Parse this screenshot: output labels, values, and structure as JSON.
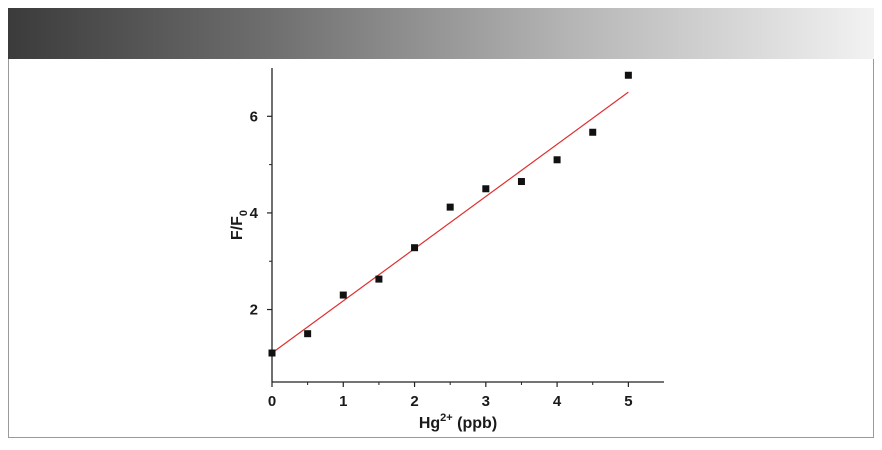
{
  "chart_data": {
    "type": "scatter",
    "xlabel": {
      "base": "Hg",
      "sup": "2+",
      "rest": " (ppb)"
    },
    "ylabel": {
      "base": "F/F",
      "sub": "0"
    },
    "xlim": [
      0,
      5.5
    ],
    "ylim": [
      0.5,
      7
    ],
    "xticks": [
      0,
      1,
      2,
      3,
      4,
      5
    ],
    "yticks": [
      2,
      4,
      6
    ],
    "yminor": [
      3,
      5
    ],
    "points": [
      {
        "x": 0.0,
        "y": 1.1
      },
      {
        "x": 0.5,
        "y": 1.5
      },
      {
        "x": 1.0,
        "y": 2.3
      },
      {
        "x": 1.5,
        "y": 2.63
      },
      {
        "x": 2.0,
        "y": 3.28
      },
      {
        "x": 2.5,
        "y": 4.12
      },
      {
        "x": 3.0,
        "y": 4.5
      },
      {
        "x": 3.5,
        "y": 4.65
      },
      {
        "x": 4.0,
        "y": 5.1
      },
      {
        "x": 4.5,
        "y": 5.67
      },
      {
        "x": 5.0,
        "y": 6.85
      }
    ],
    "fit_line": {
      "x": [
        0,
        5
      ],
      "y": [
        1.1,
        6.5
      ],
      "color": "#e03030"
    },
    "marker_color": "#111111",
    "grid": false
  }
}
